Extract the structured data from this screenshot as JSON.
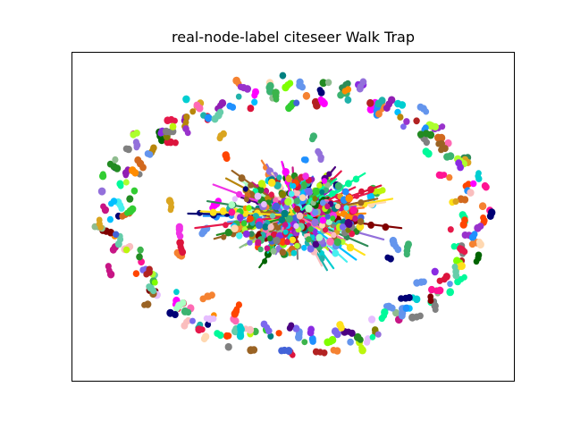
{
  "title": "real-node-label citeseer Walk Trap",
  "graph": {
    "layout": "ring",
    "center_cluster": "dense hub of many small multicolored clusters",
    "outer_ring": "scattered small clusters and isolated nodes arranged in an ellipse",
    "palette": [
      "#e6194b",
      "#3cb44b",
      "#ffe119",
      "#4363d8",
      "#f58231",
      "#911eb4",
      "#46f0f0",
      "#f032e6",
      "#bcf60c",
      "#fabebe",
      "#008080",
      "#e6beff",
      "#9a6324",
      "#800000",
      "#aaffc3",
      "#808000",
      "#ffd8b1",
      "#000075",
      "#808080",
      "#1e90ff",
      "#ff1493",
      "#00ced1",
      "#32cd32",
      "#ff4500",
      "#8a2be2",
      "#20b2aa",
      "#dc143c",
      "#2e8b57",
      "#d2691e",
      "#6495ed",
      "#ff69b4",
      "#7fff00",
      "#b8860b",
      "#00fa9a",
      "#9932cc",
      "#8fbc8f",
      "#4b0082",
      "#c71585",
      "#66cdaa",
      "#daa520",
      "#006400",
      "#ff8c00",
      "#7b68ee",
      "#3cb371",
      "#b22222",
      "#00bfff",
      "#adff2f",
      "#ff00ff",
      "#228b22",
      "#9370db"
    ],
    "axes": {
      "xticks": "none",
      "yticks": "none",
      "frame": "on"
    }
  }
}
